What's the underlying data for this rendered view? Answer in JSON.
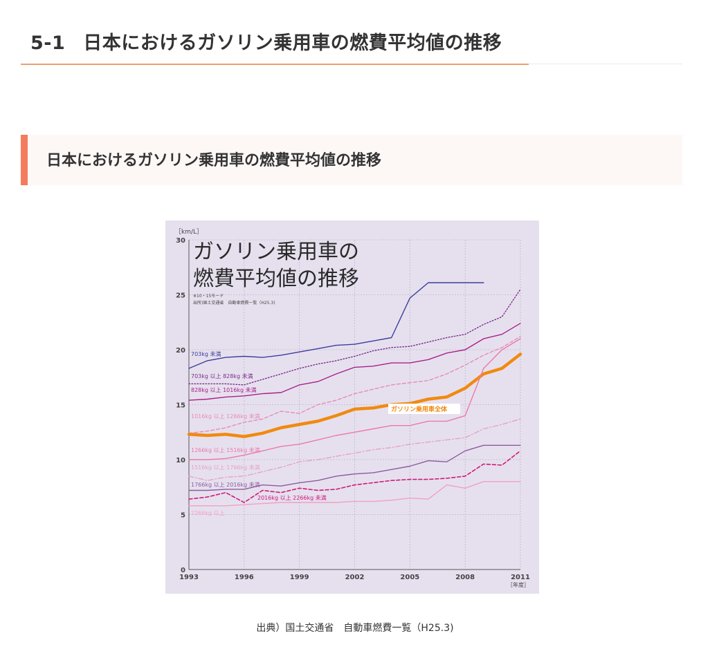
{
  "page": {
    "section_number": "5-1",
    "section_title": "日本におけるガソリン乗用車の燃費平均値の推移",
    "subheading": "日本におけるガソリン乗用車の燃費平均値の推移",
    "caption": "出典）国土交通省　自動車燃費一覧（H25.3)"
  },
  "chart_data": {
    "type": "line",
    "title_lines": [
      "ガソリン乗用車の",
      "燃費平均値の推移"
    ],
    "notes": [
      "※10・15モード",
      "出所)国土交通省　自動車燃費一覧（H25.3)"
    ],
    "ylabel": "［km/L］",
    "xlabel": "［年度］",
    "ylim": [
      0,
      30
    ],
    "y_ticks": [
      0,
      5,
      10,
      15,
      20,
      25,
      30
    ],
    "x_ticks": [
      1993,
      1996,
      1999,
      2002,
      2005,
      2008,
      2011
    ],
    "x": [
      1993,
      1994,
      1995,
      1996,
      1997,
      1998,
      1999,
      2000,
      2001,
      2002,
      2003,
      2004,
      2005,
      2006,
      2007,
      2008,
      2009,
      2010,
      2011
    ],
    "grid": true,
    "background": "#e6e0ee",
    "series": [
      {
        "name": "703kg 未満",
        "color": "#3c3c9c",
        "style": "solid",
        "width": 1.4,
        "values": [
          18.3,
          19.0,
          19.3,
          19.4,
          19.3,
          19.5,
          19.8,
          20.1,
          20.4,
          20.5,
          20.8,
          21.1,
          24.7,
          26.1,
          26.1,
          26.1,
          26.1,
          null,
          null
        ]
      },
      {
        "name": "703kg 以上 828kg 未満",
        "color": "#7a2a8a",
        "style": "dotted",
        "width": 1.4,
        "values": [
          16.9,
          16.9,
          16.9,
          16.8,
          17.3,
          17.8,
          18.3,
          18.7,
          19.0,
          19.4,
          19.9,
          20.2,
          20.3,
          20.7,
          21.1,
          21.4,
          22.3,
          23.0,
          25.5
        ]
      },
      {
        "name": "828kg 以上 1016kg 未満",
        "color": "#a8208a",
        "style": "solid",
        "width": 1.4,
        "values": [
          15.4,
          15.5,
          15.7,
          15.8,
          16.0,
          16.1,
          16.8,
          17.1,
          17.8,
          18.4,
          18.5,
          18.8,
          18.8,
          19.1,
          19.7,
          20.0,
          21.0,
          21.4,
          22.4
        ]
      },
      {
        "name": "1016kg 以上 1266kg 未満",
        "color": "#e88ab8",
        "style": "dashed",
        "width": 1.4,
        "values": [
          12.4,
          12.6,
          12.9,
          13.4,
          13.7,
          14.4,
          14.2,
          15.0,
          15.4,
          16.0,
          16.4,
          16.8,
          17.0,
          17.2,
          17.8,
          18.6,
          19.5,
          20.2,
          21.2
        ]
      },
      {
        "name": "ガソリン乗用車全体",
        "color": "#f08a10",
        "style": "solid",
        "width": 4.5,
        "values": [
          12.3,
          12.2,
          12.3,
          12.1,
          12.4,
          12.9,
          13.2,
          13.5,
          14.0,
          14.6,
          14.7,
          15.0,
          15.1,
          15.5,
          15.7,
          16.5,
          17.8,
          18.3,
          19.6
        ]
      },
      {
        "name": "1266kg 以上 1516kg 未満",
        "color": "#ec78a8",
        "style": "solid",
        "width": 1.4,
        "values": [
          10.0,
          10.0,
          10.1,
          10.4,
          10.8,
          11.2,
          11.4,
          11.8,
          12.2,
          12.5,
          12.8,
          13.1,
          13.1,
          13.5,
          13.5,
          14.0,
          18.3,
          20.0,
          21.0
        ]
      },
      {
        "name": "1516kg 以上 1766kg 未満",
        "color": "#e8a0c8",
        "style": "dashdot",
        "width": 1.4,
        "values": [
          8.5,
          8.1,
          8.4,
          8.5,
          8.9,
          9.3,
          9.8,
          10.0,
          10.3,
          10.6,
          10.9,
          11.1,
          11.4,
          11.6,
          11.8,
          12.0,
          12.8,
          13.2,
          13.7
        ]
      },
      {
        "name": "1766kg 以上 2016kg 未満",
        "color": "#8c5aa0",
        "style": "solid",
        "width": 1.4,
        "values": [
          7.2,
          7.2,
          7.3,
          7.3,
          7.7,
          7.6,
          7.9,
          8.1,
          8.5,
          8.7,
          8.8,
          9.1,
          9.4,
          9.9,
          9.8,
          10.8,
          11.3,
          11.3,
          11.3
        ]
      },
      {
        "name": "2016kg 以上 2266kg 未満",
        "color": "#d0187a",
        "style": "dashed",
        "width": 1.6,
        "values": [
          6.4,
          6.6,
          7.0,
          6.1,
          7.2,
          7.0,
          7.4,
          7.2,
          7.3,
          7.7,
          7.9,
          8.1,
          8.2,
          8.2,
          8.3,
          8.5,
          9.6,
          9.5,
          10.8
        ]
      },
      {
        "name": "2266kg 以上",
        "color": "#f0a0c4",
        "style": "solid",
        "width": 1.4,
        "values": [
          5.8,
          5.8,
          5.8,
          5.9,
          6.0,
          6.1,
          6.1,
          6.1,
          6.1,
          6.2,
          6.2,
          6.3,
          6.5,
          6.4,
          7.7,
          7.4,
          8.0,
          8.0,
          8.0
        ]
      }
    ]
  }
}
